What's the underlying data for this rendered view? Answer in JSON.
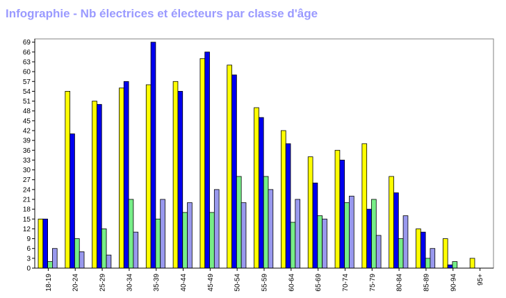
{
  "title": "Infographie - Nb électrices et électeurs par classe d'âge",
  "chart_data": {
    "type": "bar",
    "title": "Infographie - Nb électrices et électeurs par classe d'âge",
    "xlabel": "",
    "ylabel": "",
    "ylim": [
      0,
      70
    ],
    "yticks": [
      0,
      3,
      6,
      9,
      12,
      15,
      18,
      21,
      24,
      27,
      30,
      33,
      36,
      39,
      42,
      45,
      48,
      51,
      54,
      57,
      60,
      63,
      66,
      69
    ],
    "grid": false,
    "legend": "none",
    "categories": [
      "18-19",
      "20-24",
      "25-29",
      "30-34",
      "35-39",
      "40-44",
      "45-49",
      "50-54",
      "55-59",
      "60-64",
      "65-69",
      "70-74",
      "75-79",
      "80-84",
      "85-89",
      "90-94",
      "95+"
    ],
    "series": [
      {
        "color": "#ffff00",
        "values": [
          15,
          54,
          51,
          55,
          56,
          57,
          64,
          62,
          49,
          42,
          34,
          36,
          38,
          28,
          12,
          9,
          3
        ]
      },
      {
        "color": "#0000ee",
        "values": [
          15,
          41,
          50,
          57,
          69,
          54,
          66,
          59,
          46,
          38,
          26,
          33,
          18,
          23,
          11,
          1,
          0
        ]
      },
      {
        "color": "#77ee88",
        "values": [
          2,
          9,
          12,
          21,
          15,
          17,
          17,
          28,
          28,
          14,
          16,
          20,
          21,
          9,
          3,
          2,
          0
        ]
      },
      {
        "color": "#9999ee",
        "values": [
          6,
          5,
          4,
          11,
          21,
          20,
          24,
          20,
          24,
          21,
          15,
          22,
          10,
          16,
          6,
          0,
          0
        ]
      }
    ]
  }
}
